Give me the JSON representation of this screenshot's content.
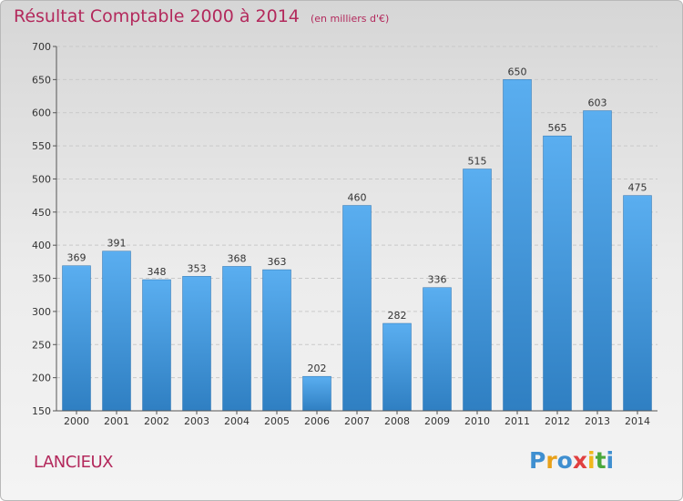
{
  "chart_data": {
    "type": "bar",
    "title": "Résultat Comptable 2000 à 2014",
    "subtitle": "(en milliers d'€)",
    "categories": [
      "2000",
      "2001",
      "2002",
      "2003",
      "2004",
      "2005",
      "2006",
      "2007",
      "2008",
      "2009",
      "2010",
      "2011",
      "2012",
      "2013",
      "2014"
    ],
    "values": [
      369,
      391,
      348,
      353,
      368,
      363,
      202,
      460,
      282,
      336,
      515,
      650,
      565,
      603,
      475
    ],
    "ylim": [
      150,
      700
    ],
    "yticks": [
      150,
      200,
      250,
      300,
      350,
      400,
      450,
      500,
      550,
      600,
      650,
      700
    ],
    "grid": true,
    "xlabel": "",
    "ylabel": "",
    "bar_color": "#3f94d6"
  },
  "footer": {
    "commune": "LANCIEUX",
    "logo": {
      "letters": [
        "P",
        "r",
        "o",
        "x",
        "i",
        "t",
        "i"
      ],
      "colors": [
        "#3f8fd0",
        "#e8a11a",
        "#3f8fd0",
        "#e04040",
        "#f0b81c",
        "#4aa83c",
        "#3f8fd0"
      ]
    }
  }
}
